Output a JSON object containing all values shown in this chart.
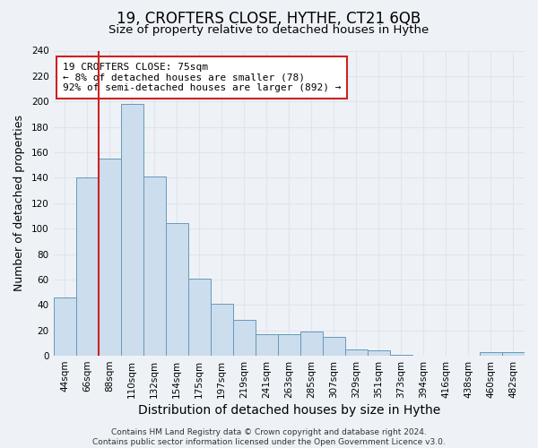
{
  "title": "19, CROFTERS CLOSE, HYTHE, CT21 6QB",
  "subtitle": "Size of property relative to detached houses in Hythe",
  "xlabel": "Distribution of detached houses by size in Hythe",
  "ylabel": "Number of detached properties",
  "bar_labels": [
    "44sqm",
    "66sqm",
    "88sqm",
    "110sqm",
    "132sqm",
    "154sqm",
    "175sqm",
    "197sqm",
    "219sqm",
    "241sqm",
    "263sqm",
    "285sqm",
    "307sqm",
    "329sqm",
    "351sqm",
    "373sqm",
    "394sqm",
    "416sqm",
    "438sqm",
    "460sqm",
    "482sqm"
  ],
  "bar_values": [
    46,
    140,
    155,
    198,
    141,
    104,
    61,
    41,
    28,
    17,
    17,
    19,
    15,
    5,
    4,
    1,
    0,
    0,
    0,
    3,
    3
  ],
  "bar_color": "#ccdded",
  "bar_edge_color": "#6699bb",
  "vline_x_index": 1.5,
  "vline_color": "#cc2222",
  "ylim": [
    0,
    240
  ],
  "yticks": [
    0,
    20,
    40,
    60,
    80,
    100,
    120,
    140,
    160,
    180,
    200,
    220,
    240
  ],
  "annotation_title": "19 CROFTERS CLOSE: 75sqm",
  "annotation_line1": "← 8% of detached houses are smaller (78)",
  "annotation_line2": "92% of semi-detached houses are larger (892) →",
  "annotation_box_facecolor": "#ffffff",
  "annotation_box_edgecolor": "#cc2222",
  "footer_line1": "Contains HM Land Registry data © Crown copyright and database right 2024.",
  "footer_line2": "Contains public sector information licensed under the Open Government Licence v3.0.",
  "background_color": "#eef2f7",
  "grid_color": "#dde5ee",
  "title_fontsize": 12,
  "subtitle_fontsize": 9.5,
  "xlabel_fontsize": 10,
  "ylabel_fontsize": 9,
  "tick_fontsize": 7.5,
  "footer_fontsize": 6.5,
  "annotation_fontsize": 8
}
